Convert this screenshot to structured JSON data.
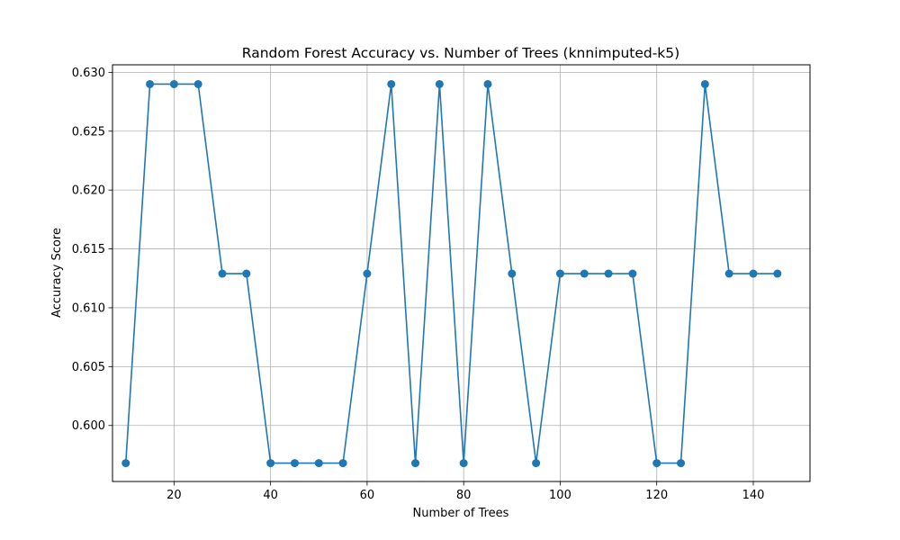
{
  "chart_data": {
    "type": "line",
    "title": "Random Forest Accuracy vs. Number of Trees (knnimputed-k5)",
    "xlabel": "Number of Trees",
    "ylabel": "Accuracy Score",
    "xlim": [
      7.25,
      151.75
    ],
    "ylim": [
      0.59524,
      0.63064
    ],
    "xticks": [
      20,
      40,
      60,
      80,
      100,
      120,
      140
    ],
    "yticks": [
      0.6,
      0.605,
      0.61,
      0.615,
      0.62,
      0.625,
      0.63
    ],
    "ytick_labels": [
      "0.600",
      "0.605",
      "0.610",
      "0.615",
      "0.620",
      "0.625",
      "0.630"
    ],
    "grid": true,
    "color": "#1f77b4",
    "marker": "circle",
    "x": [
      10,
      15,
      20,
      25,
      30,
      35,
      40,
      45,
      50,
      55,
      60,
      65,
      70,
      75,
      80,
      85,
      90,
      95,
      100,
      105,
      110,
      115,
      120,
      125,
      130,
      135,
      140,
      145
    ],
    "y": [
      0.5968,
      0.629,
      0.629,
      0.629,
      0.6129,
      0.6129,
      0.5968,
      0.5968,
      0.5968,
      0.5968,
      0.6129,
      0.629,
      0.5968,
      0.629,
      0.5968,
      0.629,
      0.6129,
      0.5968,
      0.6129,
      0.6129,
      0.6129,
      0.6129,
      0.5968,
      0.5968,
      0.629,
      0.6129,
      0.6129,
      0.6129
    ]
  }
}
